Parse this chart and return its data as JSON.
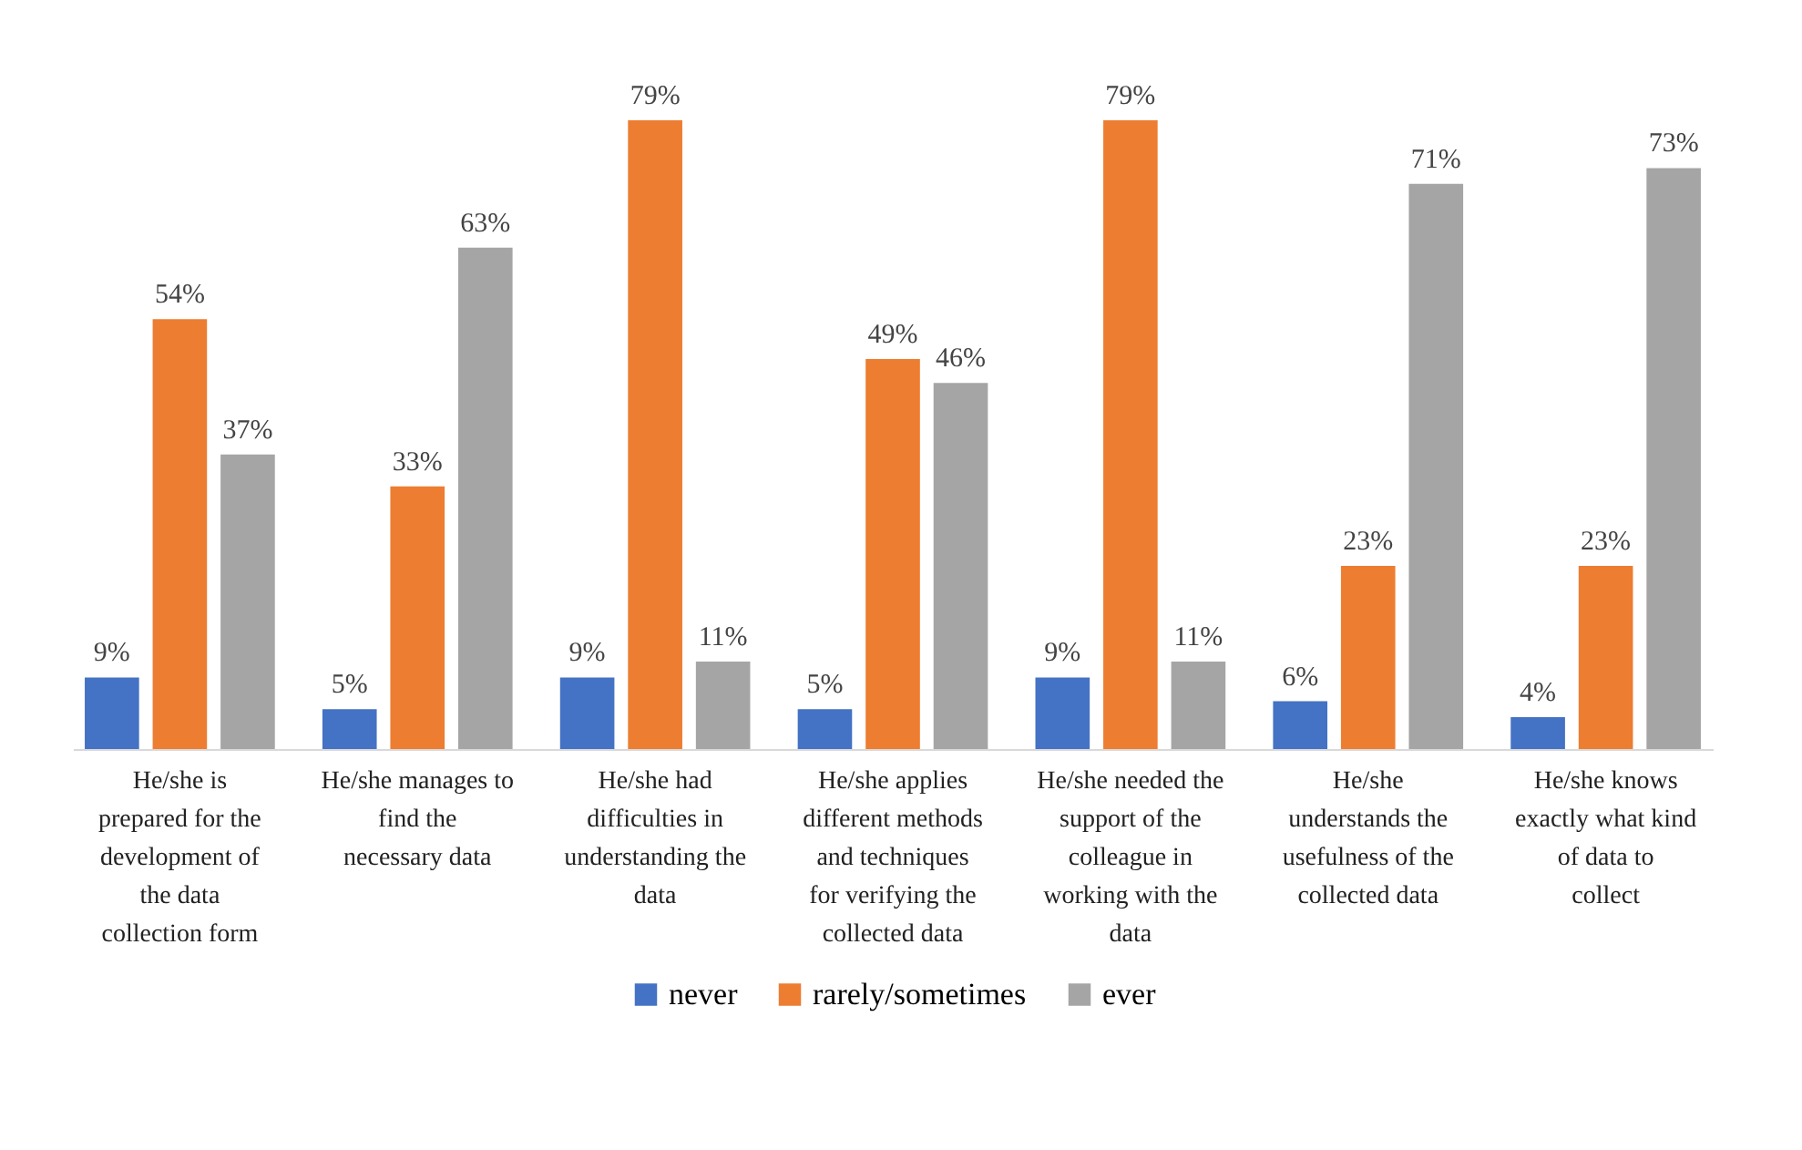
{
  "chart_data": {
    "type": "bar",
    "categories": [
      "He/she is prepared for the development of the data collection form",
      "He/she manages to find the necessary data",
      "He/she had difficulties in understanding the data",
      "He/she applies different methods and techniques for verifying the collected data",
      "He/she needed the support of the colleague in working with the data",
      "He/she understands the usefulness of the collected data",
      "He/she knows exactly what kind of data to collect"
    ],
    "series": [
      {
        "name": "never",
        "color": "#4472c4",
        "values": [
          9,
          5,
          9,
          5,
          9,
          6,
          4
        ],
        "value_labels": [
          "9%",
          "5%",
          "9%",
          "5%",
          "9%",
          "6%",
          "4%"
        ]
      },
      {
        "name": "rarely/sometimes",
        "color": "#ed7d31",
        "values": [
          54,
          33,
          79,
          49,
          79,
          23,
          23
        ],
        "value_labels": [
          "54%",
          "33%",
          "79%",
          "49%",
          "79%",
          "23%",
          "23%"
        ]
      },
      {
        "name": "ever",
        "color": "#a5a5a5",
        "values": [
          37,
          63,
          11,
          46,
          11,
          71,
          73
        ],
        "value_labels": [
          "37%",
          "63%",
          "11%",
          "46%",
          "11%",
          "71%",
          "73%"
        ]
      }
    ],
    "legend": "bottom",
    "grid": false
  }
}
